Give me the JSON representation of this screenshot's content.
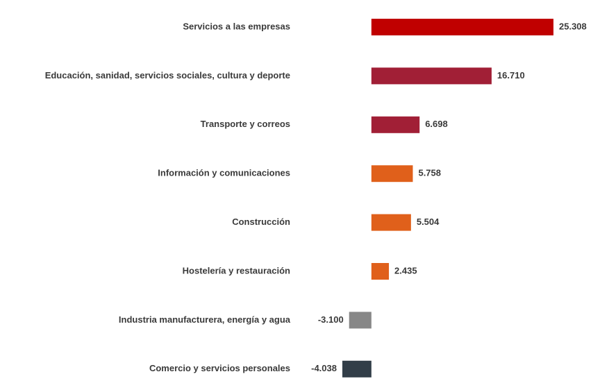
{
  "chart_data": {
    "type": "barh",
    "categories": [
      "Servicios a las empresas",
      "Educación, sanidad, servicios sociales, cultura y deporte",
      "Transporte y correos",
      "Información y comunicaciones",
      "Construcción",
      "Hostelería y restauración",
      "Industria manufacturera, energía y agua",
      "Comercio y servicios personales"
    ],
    "values": [
      25308,
      16710,
      6698,
      5758,
      5504,
      2435,
      -3100,
      -4038
    ],
    "value_labels": [
      "25.308",
      "16.710",
      "6.698",
      "5.758",
      "5.504",
      "2.435",
      "-3.100",
      "-4.038"
    ],
    "colors": [
      "#c00000",
      "#a11f36",
      "#a11f36",
      "#e0601b",
      "#e0601b",
      "#e0601b",
      "#878787",
      "#323e48"
    ]
  }
}
